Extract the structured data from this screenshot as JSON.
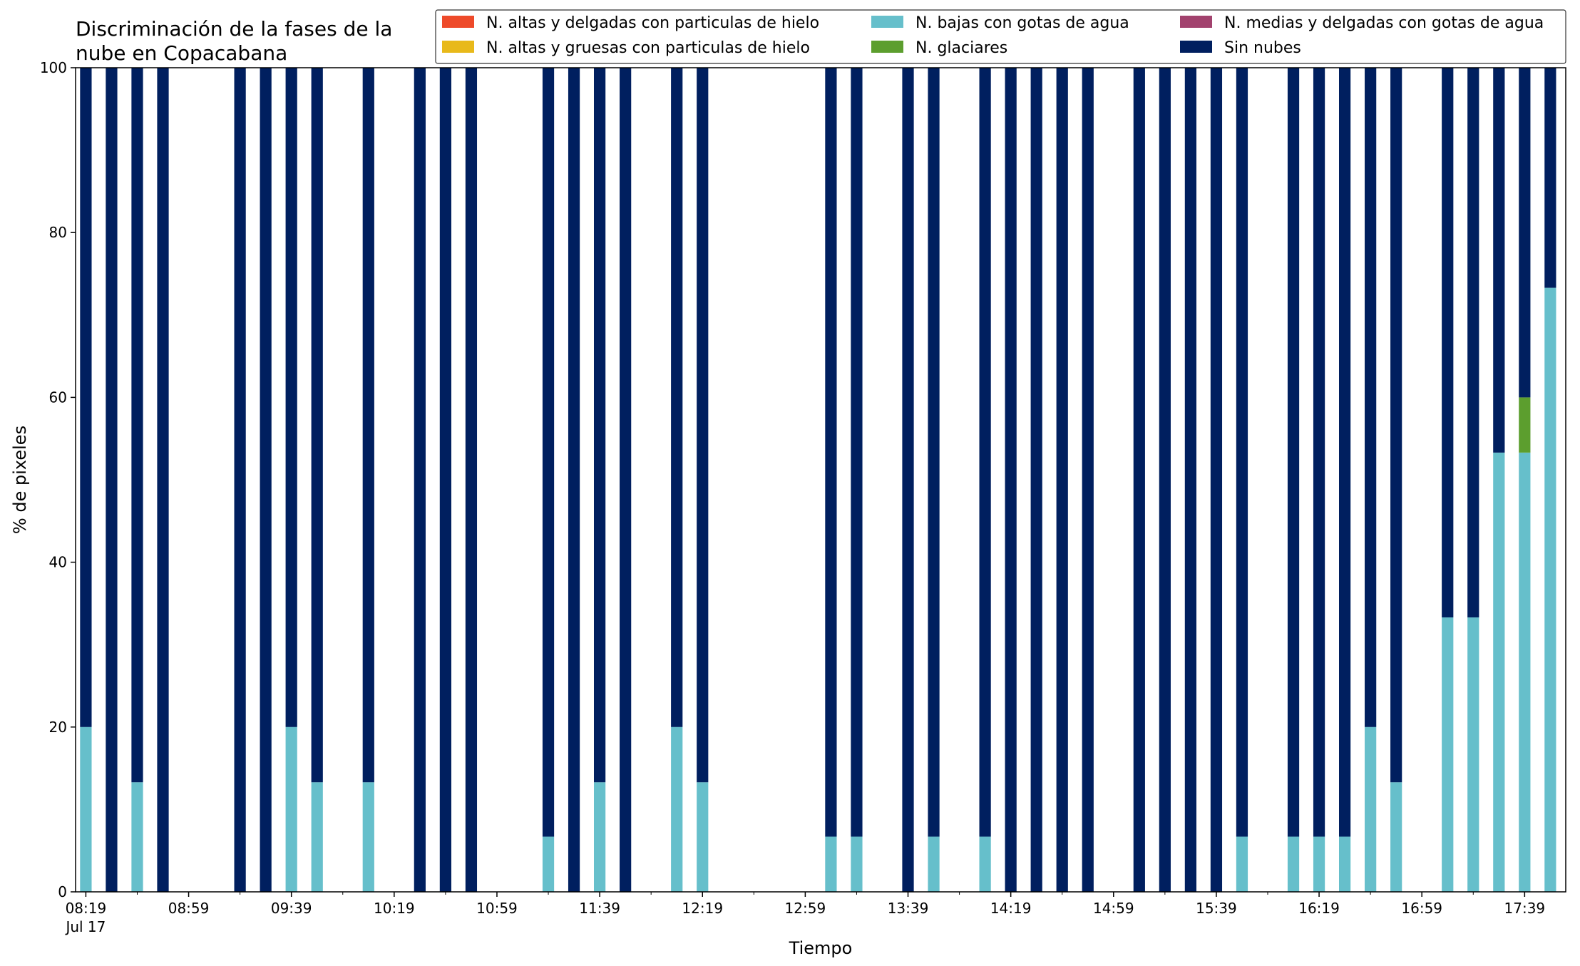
{
  "chart_data": {
    "type": "bar",
    "stacked": true,
    "title_lines": [
      "Discriminación de la fases de la",
      "nube en Copacabana"
    ],
    "xlabel": "Tiempo",
    "ylabel": "% de pixeles",
    "ylim": [
      0,
      100
    ],
    "yticks": [
      0,
      20,
      40,
      60,
      80,
      100
    ],
    "xlim": [
      "08:15",
      "17:55"
    ],
    "bar_width_minutes": 4.5,
    "x_ticks_labeled": [
      {
        "time": "08:19",
        "label": "08:19",
        "sublabel": "Jul 17"
      },
      {
        "time": "08:59",
        "label": "08:59"
      },
      {
        "time": "09:39",
        "label": "09:39"
      },
      {
        "time": "10:19",
        "label": "10:19"
      },
      {
        "time": "10:59",
        "label": "10:59"
      },
      {
        "time": "11:39",
        "label": "11:39"
      },
      {
        "time": "12:19",
        "label": "12:19"
      },
      {
        "time": "12:59",
        "label": "12:59"
      },
      {
        "time": "13:39",
        "label": "13:39"
      },
      {
        "time": "14:19",
        "label": "14:19"
      },
      {
        "time": "14:59",
        "label": "14:59"
      },
      {
        "time": "15:39",
        "label": "15:39"
      },
      {
        "time": "16:19",
        "label": "16:19"
      },
      {
        "time": "16:59",
        "label": "16:59"
      },
      {
        "time": "17:39",
        "label": "17:39"
      }
    ],
    "x_ticks_minor": [
      "08:39",
      "09:19",
      "09:59",
      "10:39",
      "11:19",
      "11:59",
      "12:39",
      "13:19",
      "13:59",
      "14:39",
      "15:19",
      "15:59",
      "16:39",
      "17:19",
      "17:59"
    ],
    "legend_position": "top-right",
    "legend_columns": 3,
    "series": [
      {
        "name": "N. altas y delgadas con particulas de hielo",
        "color": "#ee4a2a"
      },
      {
        "name": "N. altas y gruesas con particulas de hielo",
        "color": "#e8b91a"
      },
      {
        "name": "N. bajas con gotas de agua",
        "color": "#66bfcb"
      },
      {
        "name": "N. glaciares",
        "color": "#5c9e2e"
      },
      {
        "name": "N. medias y delgadas con gotas de agua",
        "color": "#a2426e"
      },
      {
        "name": "Sin nubes",
        "color": "#001f5f"
      }
    ],
    "bars": [
      {
        "time": "08:19",
        "bajas": 20.0,
        "glaciares": 0,
        "sin_nubes": 80.0
      },
      {
        "time": "08:29",
        "bajas": 0,
        "glaciares": 0,
        "sin_nubes": 100
      },
      {
        "time": "08:39",
        "bajas": 13.3,
        "glaciares": 0,
        "sin_nubes": 86.7
      },
      {
        "time": "08:49",
        "bajas": 0,
        "glaciares": 0,
        "sin_nubes": 100
      },
      {
        "time": "09:19",
        "bajas": 0,
        "glaciares": 0,
        "sin_nubes": 100
      },
      {
        "time": "09:29",
        "bajas": 0,
        "glaciares": 0,
        "sin_nubes": 100
      },
      {
        "time": "09:39",
        "bajas": 20.0,
        "glaciares": 0,
        "sin_nubes": 80.0
      },
      {
        "time": "09:49",
        "bajas": 13.3,
        "glaciares": 0,
        "sin_nubes": 86.7
      },
      {
        "time": "10:09",
        "bajas": 13.3,
        "glaciares": 0,
        "sin_nubes": 86.7
      },
      {
        "time": "10:29",
        "bajas": 0,
        "glaciares": 0,
        "sin_nubes": 100
      },
      {
        "time": "10:39",
        "bajas": 0,
        "glaciares": 0,
        "sin_nubes": 100
      },
      {
        "time": "10:49",
        "bajas": 0,
        "glaciares": 0,
        "sin_nubes": 100
      },
      {
        "time": "11:19",
        "bajas": 6.7,
        "glaciares": 0,
        "sin_nubes": 93.3
      },
      {
        "time": "11:29",
        "bajas": 0,
        "glaciares": 0,
        "sin_nubes": 100
      },
      {
        "time": "11:39",
        "bajas": 13.3,
        "glaciares": 0,
        "sin_nubes": 86.7
      },
      {
        "time": "11:49",
        "bajas": 0,
        "glaciares": 0,
        "sin_nubes": 100
      },
      {
        "time": "12:09",
        "bajas": 20.0,
        "glaciares": 0,
        "sin_nubes": 80.0
      },
      {
        "time": "12:19",
        "bajas": 13.3,
        "glaciares": 0,
        "sin_nubes": 86.7
      },
      {
        "time": "13:09",
        "bajas": 6.7,
        "glaciares": 0,
        "sin_nubes": 93.3
      },
      {
        "time": "13:19",
        "bajas": 6.7,
        "glaciares": 0,
        "sin_nubes": 93.3
      },
      {
        "time": "13:39",
        "bajas": 0,
        "glaciares": 0,
        "sin_nubes": 100
      },
      {
        "time": "13:49",
        "bajas": 6.7,
        "glaciares": 0,
        "sin_nubes": 93.3
      },
      {
        "time": "14:09",
        "bajas": 6.7,
        "glaciares": 0,
        "sin_nubes": 93.3
      },
      {
        "time": "14:19",
        "bajas": 0,
        "glaciares": 0,
        "sin_nubes": 100
      },
      {
        "time": "14:29",
        "bajas": 0,
        "glaciares": 0,
        "sin_nubes": 100
      },
      {
        "time": "14:39",
        "bajas": 0,
        "glaciares": 0,
        "sin_nubes": 100
      },
      {
        "time": "14:49",
        "bajas": 0,
        "glaciares": 0,
        "sin_nubes": 100
      },
      {
        "time": "15:09",
        "bajas": 0,
        "glaciares": 0,
        "sin_nubes": 100
      },
      {
        "time": "15:19",
        "bajas": 0,
        "glaciares": 0,
        "sin_nubes": 100
      },
      {
        "time": "15:29",
        "bajas": 0,
        "glaciares": 0,
        "sin_nubes": 100
      },
      {
        "time": "15:39",
        "bajas": 0,
        "glaciares": 0,
        "sin_nubes": 100
      },
      {
        "time": "15:49",
        "bajas": 6.7,
        "glaciares": 0,
        "sin_nubes": 93.3
      },
      {
        "time": "16:09",
        "bajas": 6.7,
        "glaciares": 0,
        "sin_nubes": 93.3
      },
      {
        "time": "16:19",
        "bajas": 6.7,
        "glaciares": 0,
        "sin_nubes": 93.3
      },
      {
        "time": "16:29",
        "bajas": 6.7,
        "glaciares": 0,
        "sin_nubes": 93.3
      },
      {
        "time": "16:39",
        "bajas": 20.0,
        "glaciares": 0,
        "sin_nubes": 80.0
      },
      {
        "time": "16:49",
        "bajas": 13.3,
        "glaciares": 0,
        "sin_nubes": 86.7
      },
      {
        "time": "17:09",
        "bajas": 33.3,
        "glaciares": 0,
        "sin_nubes": 66.7
      },
      {
        "time": "17:19",
        "bajas": 33.3,
        "glaciares": 0,
        "sin_nubes": 66.7
      },
      {
        "time": "17:29",
        "bajas": 53.3,
        "glaciares": 0,
        "sin_nubes": 46.7
      },
      {
        "time": "17:39",
        "bajas": 53.3,
        "glaciares": 6.7,
        "sin_nubes": 40.0
      },
      {
        "time": "17:49",
        "bajas": 73.3,
        "glaciares": 0,
        "sin_nubes": 26.7
      }
    ]
  }
}
